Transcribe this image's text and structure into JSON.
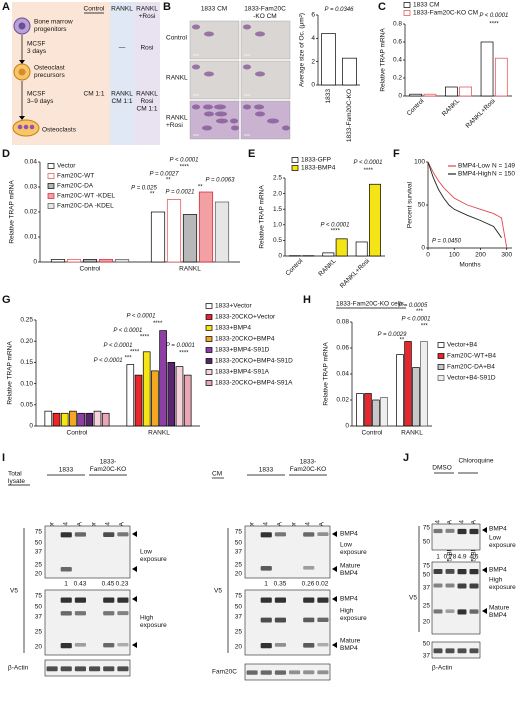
{
  "panel_labels": [
    "A",
    "B",
    "C",
    "D",
    "E",
    "F",
    "G",
    "H",
    "I",
    "J"
  ],
  "panel_a": {
    "columns": [
      [
        "Control"
      ],
      [
        "RANKL"
      ],
      [
        "RANKL",
        "+Rosi"
      ]
    ],
    "stages": [
      [
        "Bone marrow",
        "progenitors"
      ],
      [
        "Osteoclast",
        "precursors"
      ],
      [
        "Osteoclasts"
      ]
    ],
    "treatments": [
      [
        "MCSF",
        "3 days"
      ],
      [
        "MCSF",
        "3–9 days"
      ]
    ],
    "row1": [
      "—",
      "Rosi"
    ],
    "row2": [
      [
        "CM 1:1"
      ],
      [
        "RANKL",
        "CM 1:1"
      ],
      [
        "RANKL",
        "Rosi",
        "CM 1:1"
      ]
    ]
  },
  "panel_b": {
    "columns": [
      [
        "1833 CM"
      ],
      [
        "1833-Fam20C",
        "-KO CM"
      ]
    ],
    "rows": [
      [
        "Control"
      ],
      [
        "RANKL"
      ],
      [
        "RANKL",
        "+Rosi"
      ]
    ]
  },
  "chart_data": [
    {
      "type": "bar",
      "ylabel": "Average size of Oc. (μm²)",
      "categories": [
        "1833",
        "1833-Fam20C-KO"
      ],
      "values": [
        4.4,
        2.3
      ],
      "color": "#ffffff",
      "edgecolor": "#000000",
      "ylim": [
        0,
        6
      ],
      "yticks": [
        0,
        2,
        4,
        6
      ],
      "annotations": [
        "P = 0.0346"
      ]
    },
    {
      "type": "bar",
      "ylabel": "Relative TRAP mRNA",
      "categories": [
        "Control",
        "RANKL",
        "RANKL+Rosi"
      ],
      "series": [
        {
          "name": "1833 CM",
          "color": "#ffffff",
          "edgecolor": "#000000",
          "values": [
            0.02,
            0.1,
            0.6
          ]
        },
        {
          "name": "1833-Fam20C-KO CM",
          "color": "#ffffff",
          "edgecolor": "#e0474c",
          "values": [
            0.02,
            0.1,
            0.42
          ]
        }
      ],
      "ylim": [
        0,
        0.8
      ],
      "yticks": [
        0,
        0.2,
        0.4,
        0.6,
        0.8
      ],
      "annotations": [
        "P < 0.0001",
        "****"
      ]
    },
    {
      "type": "bar",
      "ylabel": "Relative TRAP mRNA",
      "categories": [
        "Control",
        "RANKL"
      ],
      "series": [
        {
          "name": "Vector",
          "color": "#ffffff",
          "edgecolor": "#000000",
          "values": [
            0.001,
            0.02
          ]
        },
        {
          "name": "Fam20C-WT",
          "color": "#ffffff",
          "edgecolor": "#e0474c",
          "values": [
            0.001,
            0.025
          ]
        },
        {
          "name": "Fam20C-DA",
          "color": "#b8b8b8",
          "edgecolor": "#000000",
          "values": [
            0.001,
            0.019
          ]
        },
        {
          "name": "Fam20C-WT -KDEL",
          "color": "#f2a0a4",
          "edgecolor": "#d0202a",
          "values": [
            0.001,
            0.028
          ]
        },
        {
          "name": "Fam20C-DA -KDEL",
          "color": "#e6e6e6",
          "edgecolor": "#555555",
          "values": [
            0.001,
            0.024
          ]
        }
      ],
      "ylim": [
        0,
        0.04
      ],
      "yticks": [
        0,
        0.01,
        0.02,
        0.03,
        0.04
      ],
      "annotations": [
        "P < 0.0001",
        "****",
        "P = 0.0027",
        "**",
        "P = 0.0063",
        "P = 0.025",
        "**",
        "P = 0.0021",
        "**"
      ]
    },
    {
      "type": "bar",
      "ylabel": "Relative TRAP mRNA",
      "categories": [
        "Control",
        "RANKL",
        "RANKL+Rosi"
      ],
      "series": [
        {
          "name": "1833-GFP",
          "color": "#ffffff",
          "edgecolor": "#000000",
          "values": [
            0.01,
            0.1,
            0.45
          ]
        },
        {
          "name": "1833-BMP4",
          "color": "#f5e416",
          "edgecolor": "#000000",
          "values": [
            0.01,
            0.55,
            2.3
          ]
        }
      ],
      "ylim": [
        0,
        2.5
      ],
      "yticks": [
        0,
        0.5,
        {
          "value": 1,
          "label": "1.0"
        },
        1.5,
        {
          "value": 2,
          "label": "2.0"
        },
        2.5
      ],
      "annotations": [
        "P < 0.0001",
        "****",
        "P < 0.0001",
        "****"
      ]
    },
    {
      "type": "line",
      "ylabel": "Percent survival",
      "xlabel": "Months",
      "x": [
        0,
        20,
        40,
        60,
        80,
        100,
        150,
        200,
        250,
        280,
        300
      ],
      "series": [
        {
          "name": "BMP4-Low",
          "n": "N = 149",
          "color": "#e0474c",
          "values": [
            100,
            88,
            78,
            70,
            64,
            58,
            50,
            45,
            40,
            35,
            0
          ]
        },
        {
          "name": "BMP4-High",
          "n": "N = 150",
          "color": "#222222",
          "values": [
            100,
            82,
            68,
            58,
            50,
            45,
            38,
            32,
            25,
            12,
            null
          ]
        }
      ],
      "xlim": [
        0,
        320
      ],
      "xticks": [
        0,
        100,
        200,
        300
      ],
      "ylim": [
        0,
        100
      ],
      "yticks": [
        0,
        50,
        100
      ],
      "annotations": [
        "P = 0.0450"
      ]
    },
    {
      "type": "bar",
      "ylabel": "Relative TRAP mRNA",
      "categories": [
        "Control",
        "RANKL"
      ],
      "series": [
        {
          "name": "1833+Vector",
          "color": "#ffffff",
          "edgecolor": "#000000",
          "values": [
            0.035,
            0.145
          ]
        },
        {
          "name": "1833-20CKO+Vector",
          "color": "#e8262c",
          "edgecolor": "#000000",
          "values": [
            0.03,
            0.12
          ]
        },
        {
          "name": "1833+BMP4",
          "color": "#f5e416",
          "edgecolor": "#000000",
          "values": [
            0.03,
            0.175
          ]
        },
        {
          "name": "1833-20CKO+BMP4",
          "color": "#f5a623",
          "edgecolor": "#000000",
          "values": [
            0.035,
            0.13
          ]
        },
        {
          "name": "1833+BMP4-S91D",
          "color": "#8e3fa6",
          "edgecolor": "#000000",
          "values": [
            0.03,
            0.225
          ]
        },
        {
          "name": "1833-20CKO+BMP4-S91D",
          "color": "#5b2470",
          "edgecolor": "#000000",
          "values": [
            0.03,
            0.15
          ]
        },
        {
          "name": "1833+BMP4-S91A",
          "color": "#f7d3dc",
          "edgecolor": "#000000",
          "values": [
            0.035,
            0.14
          ]
        },
        {
          "name": "1833-20CKO+BMP4-S91A",
          "color": "#e9a7b6",
          "edgecolor": "#000000",
          "values": [
            0.03,
            0.12
          ]
        }
      ],
      "ylim": [
        0,
        0.25
      ],
      "yticks": [
        0,
        0.05,
        {
          "value": 0.1,
          "label": "0.10"
        },
        0.15,
        {
          "value": 0.2,
          "label": "0.20"
        },
        0.25
      ],
      "annotations": [
        "P < 0.0001",
        "***",
        "P < 0.0001",
        "****",
        "P < 0.0001",
        "****",
        "P < 0.0001",
        "****",
        "P = 0.0001",
        "****"
      ]
    },
    {
      "type": "bar",
      "title": "1833-Fam20C-KO cells",
      "ylabel": "Relative TRAP mRNA",
      "categories": [
        "Control",
        "RANKL"
      ],
      "series": [
        {
          "name": "Vector+B4",
          "color": "#ffffff",
          "edgecolor": "#000000",
          "values": [
            0.025,
            0.055
          ]
        },
        {
          "name": "Fam20C-WT+B4",
          "color": "#e8262c",
          "edgecolor": "#000000",
          "values": [
            0.025,
            0.065
          ]
        },
        {
          "name": "Fam20C-DA+B4",
          "color": "#c8c8c8",
          "edgecolor": "#000000",
          "values": [
            0.02,
            0.045
          ]
        },
        {
          "name": "Vector+B4-S91D",
          "color": "#eeeeee",
          "edgecolor": "#555555",
          "values": [
            0.022,
            0.065
          ]
        }
      ],
      "ylim": [
        0,
        0.08
      ],
      "yticks": [
        0,
        0.02,
        0.04,
        0.06,
        0.08
      ],
      "annotations": [
        "P = 0.0005",
        "***",
        "P = 0.0029",
        "**",
        "P < 0.0001",
        "***"
      ]
    }
  ],
  "panel_i": {
    "total_lysate": [
      "Total",
      "lysate"
    ],
    "cm": "CM",
    "groups": [
      [
        "1833"
      ],
      [
        "1833-",
        "Fam20C-KO"
      ]
    ],
    "lanes": [
      "Vector",
      "V5-BMP4",
      "V5-BMP4-S91A",
      "Vector",
      "V5-BMP4",
      "V5-BMP4-S91A"
    ],
    "mw": [
      "75",
      "50",
      "37",
      "25",
      "20"
    ],
    "low": [
      "Low",
      "exposure"
    ],
    "high": [
      "High",
      "exposure"
    ],
    "v5": "V5",
    "actin": "β-Actin",
    "bmp4": "BMP4",
    "mature": [
      "Mature",
      "BMP4"
    ],
    "fam20c": "Fam20C",
    "quant_total": [
      "1",
      "0.43",
      "0.45",
      "0.23"
    ],
    "quant_cm": [
      "1",
      "0.35",
      "0.26",
      "0.02"
    ]
  },
  "panel_j": {
    "conditions": [
      "DMSO",
      "Chloroquine"
    ],
    "lanes": [
      "V5-BMP4",
      "V5-BMP4-S91A",
      "V5-BMP4",
      "V5-BMP4-S91A"
    ],
    "mw": [
      "75",
      "50",
      "37",
      "25",
      "20"
    ],
    "mw_actin": [
      "50",
      "37"
    ],
    "quant": [
      "1",
      "0.78",
      "4.9",
      "4.6"
    ],
    "bmp4": "BMP4",
    "low": [
      "Low",
      "exposure"
    ],
    "high": [
      "High",
      "exposure"
    ],
    "mature": [
      "Mature",
      "BMP4"
    ],
    "v5": "V5",
    "actin": "β-Actin"
  }
}
